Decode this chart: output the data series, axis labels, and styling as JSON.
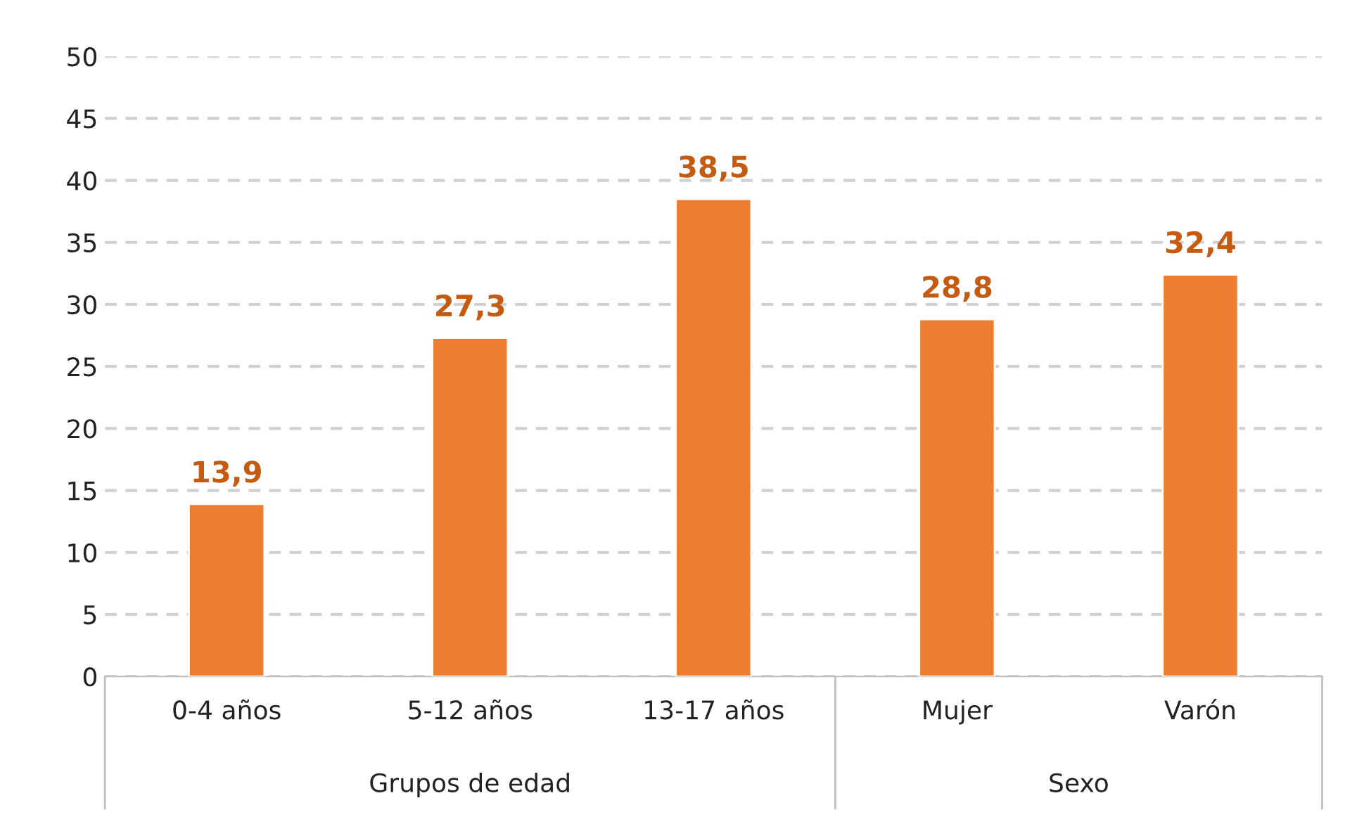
{
  "chart_data": {
    "type": "bar",
    "categories": [
      "0-4 años",
      "5-12 años",
      "13-17 años",
      "Mujer",
      "Varón"
    ],
    "values": [
      13.9,
      27.3,
      38.5,
      28.8,
      32.4
    ],
    "value_labels": [
      "13,9",
      "27,3",
      "38,5",
      "28,8",
      "32,4"
    ],
    "color": "#ed7d31",
    "ylim": [
      0,
      50
    ],
    "yticks": [
      0,
      5,
      10,
      15,
      20,
      25,
      30,
      35,
      40,
      45,
      50
    ],
    "grid": "y",
    "annotations": [
      "Grupos de edad",
      "Sexo"
    ]
  }
}
